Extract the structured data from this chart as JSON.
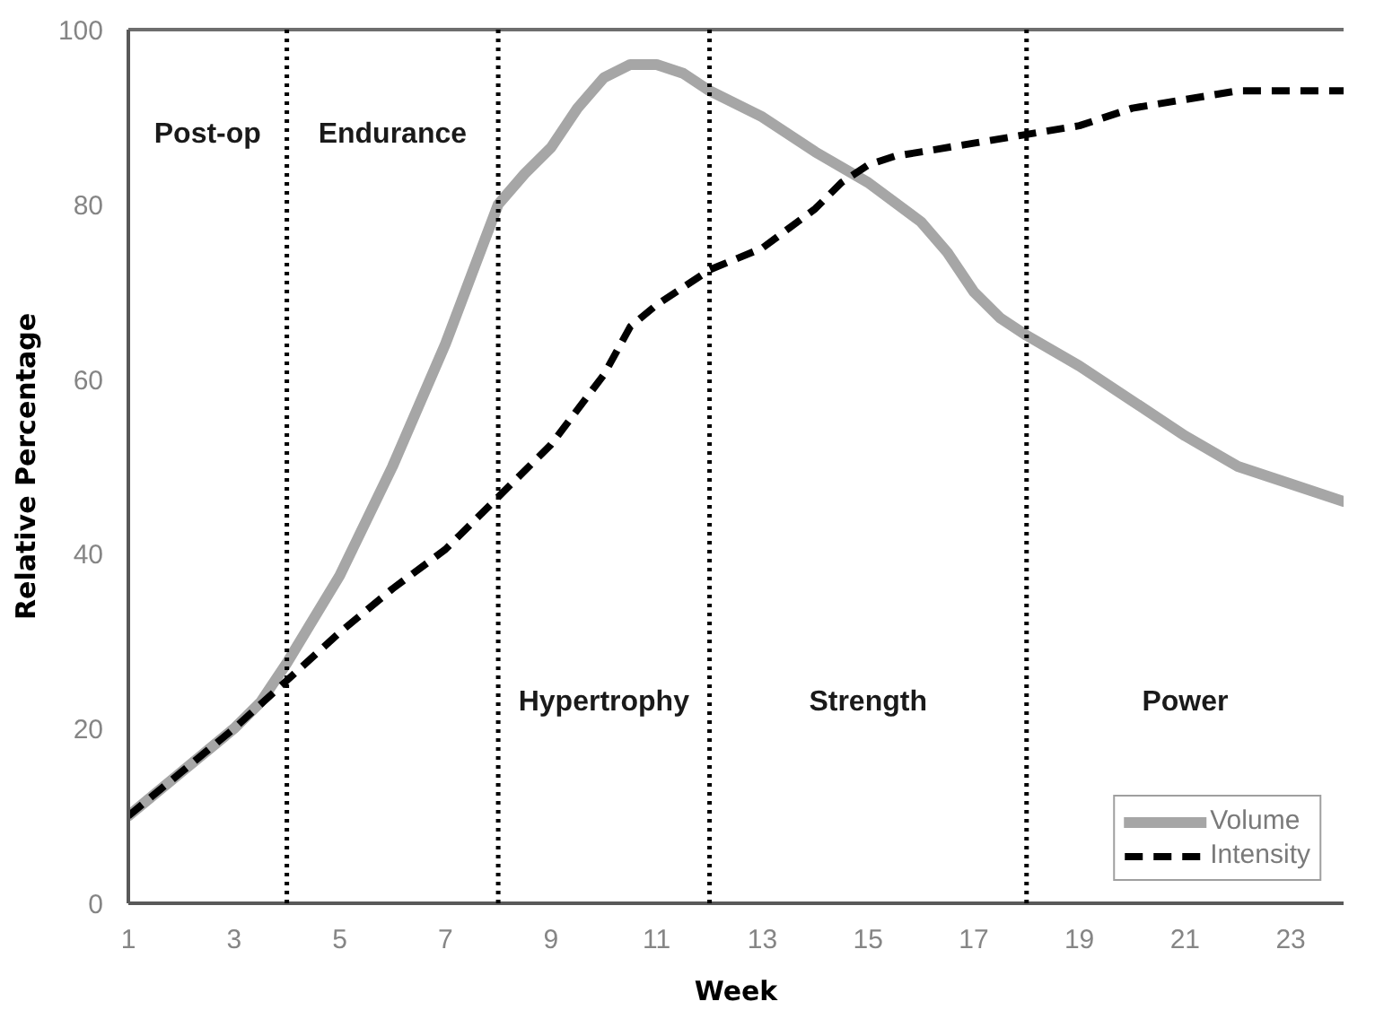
{
  "chart_data": {
    "type": "line",
    "xlabel": "Week",
    "ylabel": "Relative Percentage",
    "xlim": [
      1,
      24
    ],
    "ylim": [
      0,
      100
    ],
    "xticks": [
      1,
      3,
      5,
      7,
      9,
      11,
      13,
      15,
      17,
      19,
      21,
      23
    ],
    "yticks": [
      0,
      20,
      40,
      60,
      80,
      100
    ],
    "series": [
      {
        "name": "Volume",
        "color": "#a6a6a6",
        "line_style": "solid",
        "x": [
          1,
          2,
          3,
          3.5,
          4,
          5,
          6,
          7,
          7.5,
          8,
          8.5,
          9,
          9.5,
          10,
          10.5,
          11,
          11.5,
          12,
          13,
          14,
          15,
          16,
          16.5,
          17,
          17.5,
          18,
          19,
          20,
          21,
          22,
          23,
          24
        ],
        "values": [
          10,
          15,
          20,
          23,
          27.5,
          37.5,
          50,
          64,
          72,
          80,
          83.5,
          86.5,
          91,
          94.5,
          96,
          96,
          95,
          93,
          90,
          86,
          82.5,
          78,
          74.5,
          70,
          67,
          65,
          61.5,
          57.5,
          53.5,
          50,
          48,
          46
        ]
      },
      {
        "name": "Intensity",
        "color": "#000000",
        "line_style": "dashed",
        "x": [
          1,
          2,
          3,
          4,
          5,
          6,
          7,
          8,
          9,
          10,
          10.5,
          11,
          11.5,
          12,
          13,
          14,
          14.5,
          15,
          15.5,
          16,
          17,
          18,
          19,
          20,
          21,
          22,
          23,
          24
        ],
        "values": [
          10,
          15,
          20,
          25.5,
          31,
          36,
          40.5,
          46.5,
          52.5,
          60.5,
          66,
          68.5,
          70.5,
          72.5,
          75,
          79.5,
          82.5,
          84.5,
          85.5,
          86,
          87,
          88,
          89,
          91,
          92,
          93,
          93,
          93
        ]
      }
    ],
    "ref_lines": [
      {
        "axis": "x",
        "value": 4,
        "color": "#000000",
        "line_style": "dotted"
      },
      {
        "axis": "x",
        "value": 8,
        "color": "#000000",
        "line_style": "dotted"
      },
      {
        "axis": "x",
        "value": 12,
        "color": "#000000",
        "line_style": "dotted"
      },
      {
        "axis": "x",
        "value": 18,
        "color": "#000000",
        "line_style": "dotted"
      }
    ],
    "annotations": [
      "Post-op",
      "Endurance",
      "Hypertrophy",
      "Strength",
      "Power"
    ],
    "legend": "bottom right"
  }
}
